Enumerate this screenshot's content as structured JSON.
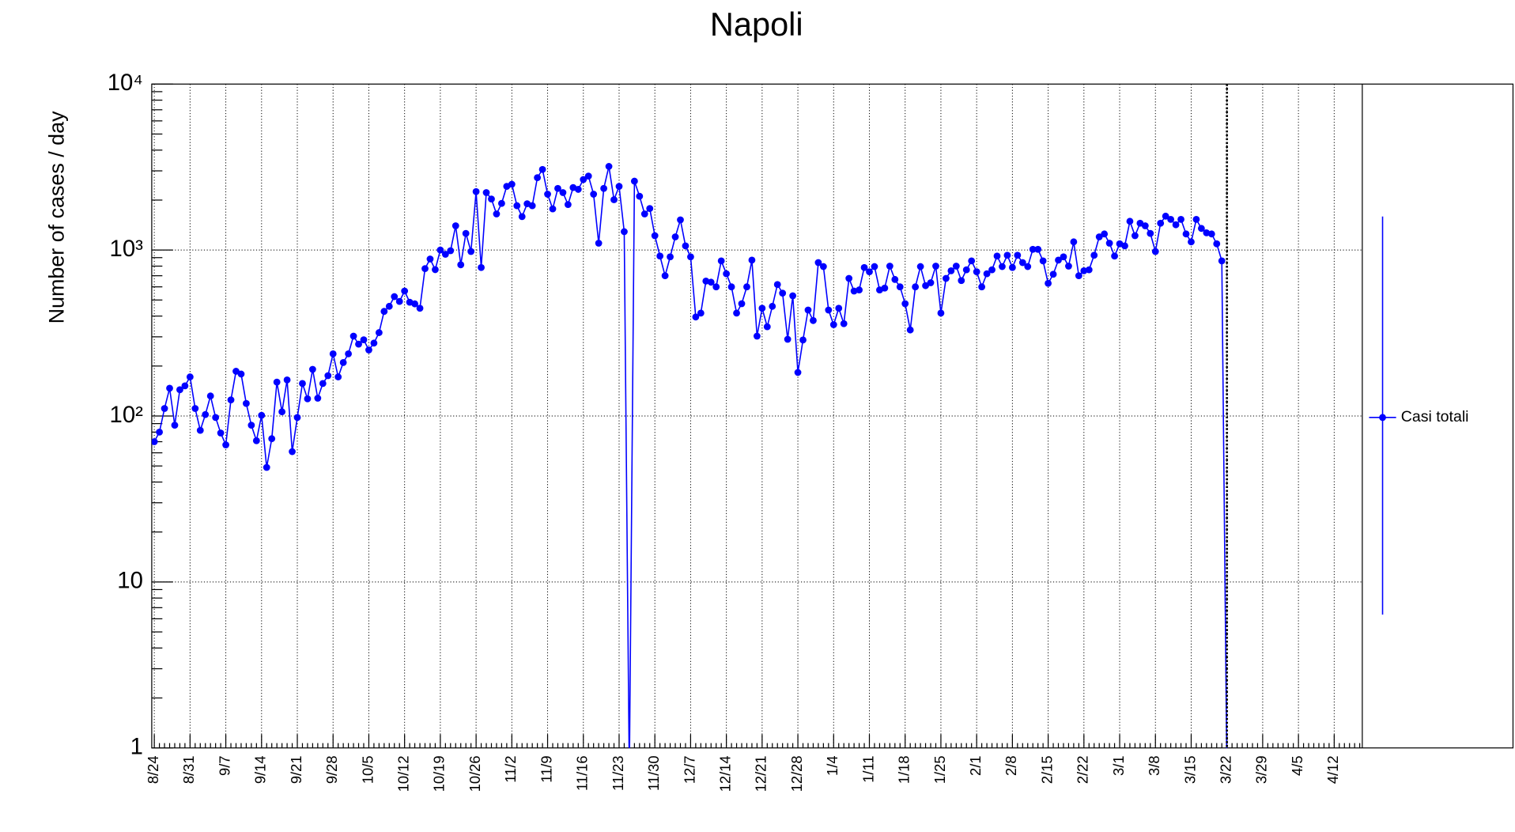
{
  "chart_data": {
    "type": "line",
    "title": "Napoli",
    "y_label": "Number of cases / day",
    "log_scale": true,
    "grid": true,
    "legend": "right",
    "categories": [
      "8/24",
      null,
      null,
      null,
      null,
      null,
      null,
      "8/31",
      null,
      null,
      null,
      null,
      null,
      null,
      "9/7",
      null,
      null,
      null,
      null,
      null,
      null,
      "9/14",
      null,
      null,
      null,
      null,
      null,
      null,
      "9/21",
      null,
      null,
      null,
      null,
      null,
      null,
      "9/28",
      null,
      null,
      null,
      null,
      null,
      null,
      "10/5",
      null,
      null,
      null,
      null,
      null,
      null,
      "10/12",
      null,
      null,
      null,
      null,
      null,
      null,
      "10/19",
      null,
      null,
      null,
      null,
      null,
      null,
      "10/26",
      null,
      null,
      null,
      null,
      null,
      null,
      "11/2",
      null,
      null,
      null,
      null,
      null,
      null,
      "11/9",
      null,
      null,
      null,
      null,
      null,
      null,
      "11/16",
      null,
      null,
      null,
      null,
      null,
      null,
      "11/23",
      null,
      null,
      null,
      null,
      null,
      null,
      "11/30",
      null,
      null,
      null,
      null,
      null,
      null,
      "12/7",
      null,
      null,
      null,
      null,
      null,
      null,
      "12/14",
      null,
      null,
      null,
      null,
      null,
      null,
      "12/21",
      null,
      null,
      null,
      null,
      null,
      null,
      "12/28",
      null,
      null,
      null,
      null,
      null,
      null,
      "1/4",
      null,
      null,
      null,
      null,
      null,
      null,
      "1/11",
      null,
      null,
      null,
      null,
      null,
      null,
      "1/18",
      null,
      null,
      null,
      null,
      null,
      null,
      "1/25",
      null,
      null,
      null,
      null,
      null,
      null,
      "2/1",
      null,
      null,
      null,
      null,
      null,
      null,
      "2/8",
      null,
      null,
      null,
      null,
      null,
      null,
      "2/15",
      null,
      null,
      null,
      null,
      null,
      null,
      "2/22",
      null,
      null,
      null,
      null,
      null,
      null,
      "3/1",
      null,
      null,
      null,
      null,
      null,
      null,
      "3/8",
      null,
      null,
      null,
      null,
      null,
      null,
      "3/15",
      null,
      null,
      null,
      null,
      null,
      null,
      "3/22",
      null,
      null,
      null,
      null,
      null,
      null,
      "3/29",
      null,
      null,
      null,
      null,
      null,
      null,
      "4/5",
      null,
      null,
      null,
      null,
      null,
      null,
      "4/12",
      null,
      null,
      null,
      null,
      null
    ],
    "series": [
      {
        "name": "Casi totali",
        "color": "#0000ff",
        "values": [
          70,
          80,
          111,
          147,
          88,
          144,
          152,
          172,
          111,
          82,
          102,
          132,
          98,
          79,
          67,
          125,
          186,
          179,
          119,
          88,
          71,
          101,
          49,
          73,
          160,
          106,
          165,
          61,
          98,
          157,
          127,
          191,
          128,
          157,
          175,
          237,
          172,
          210,
          237,
          303,
          271,
          288,
          250,
          275,
          318,
          427,
          458,
          524,
          490,
          566,
          485,
          474,
          446,
          773,
          883,
          762,
          1000,
          943,
          991,
          1400,
          815,
          1260,
          980,
          2250,
          785,
          2220,
          2030,
          1650,
          1910,
          2420,
          2490,
          1850,
          1590,
          1900,
          1850,
          2730,
          3060,
          2170,
          1770,
          2350,
          2220,
          1880,
          2380,
          2320,
          2660,
          2790,
          2170,
          1100,
          2350,
          3190,
          2010,
          2420,
          1290,
          0,
          2600,
          2110,
          1650,
          1780,
          1220,
          920,
          700,
          910,
          1200,
          1520,
          1060,
          910,
          395,
          417,
          650,
          640,
          600,
          860,
          720,
          600,
          417,
          475,
          600,
          870,
          303,
          446,
          345,
          458,
          620,
          550,
          290,
          530,
          183,
          287,
          435,
          376,
          840,
          795,
          435,
          355,
          446,
          360,
          675,
          566,
          575,
          785,
          740,
          795,
          575,
          590,
          800,
          665,
          600,
          475,
          330,
          600,
          795,
          610,
          635,
          800,
          417,
          675,
          750,
          800,
          655,
          760,
          860,
          740,
          600,
          720,
          760,
          920,
          795,
          930,
          785,
          930,
          840,
          795,
          1010,
          1010,
          860,
          630,
          715,
          870,
          910,
          800,
          1120,
          700,
          750,
          760,
          930,
          1200,
          1250,
          1100,
          920,
          1090,
          1060,
          1490,
          1220,
          1450,
          1400,
          1260,
          980,
          1450,
          1600,
          1530,
          1420,
          1530,
          1250,
          1120,
          1530,
          1350,
          1270,
          1250,
          1090,
          860,
          0,
          null,
          null,
          null,
          null,
          null,
          null,
          null,
          null,
          null,
          null,
          null,
          null,
          null,
          null,
          null,
          null,
          null,
          null,
          null,
          null,
          null,
          null,
          null,
          null,
          null,
          null
        ]
      }
    ],
    "ylim": [
      1,
      10000
    ],
    "yticks": [
      1,
      10,
      {
        "value": 100,
        "label": "10²"
      },
      {
        "value": 1000,
        "label": "10³"
      },
      {
        "value": 10000,
        "label": "10⁴"
      }
    ]
  }
}
